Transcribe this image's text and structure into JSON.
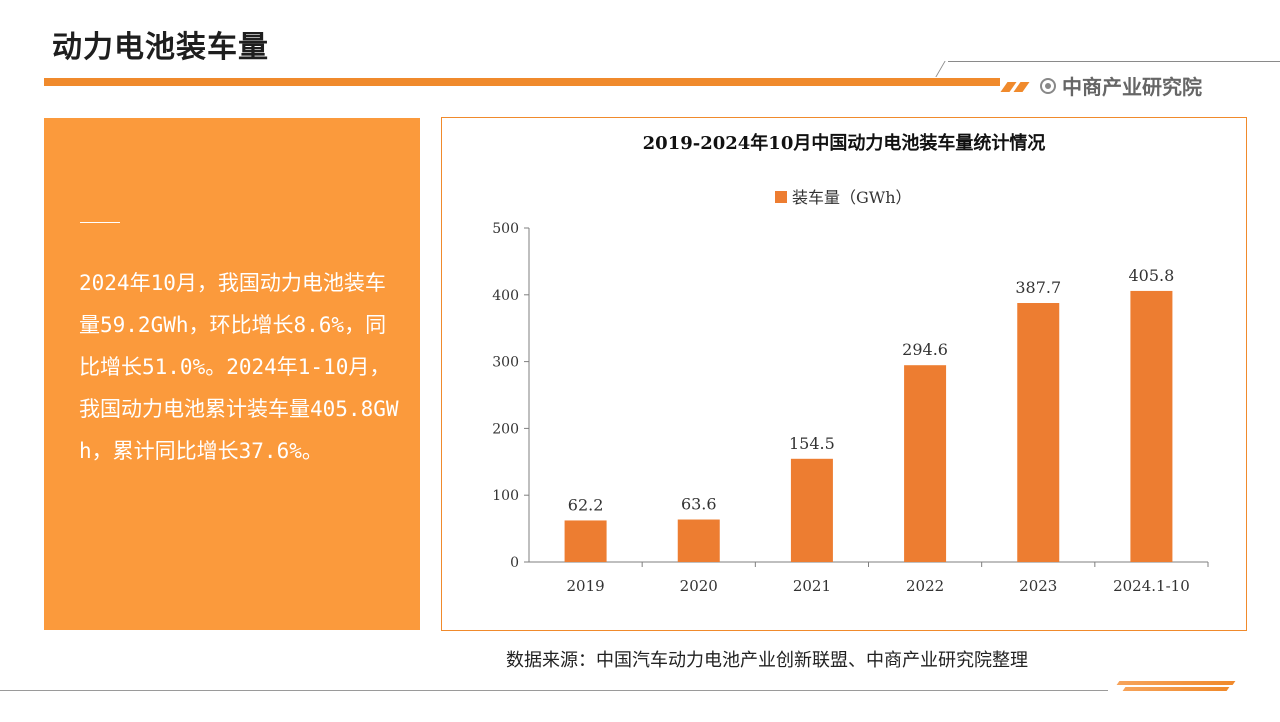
{
  "page": {
    "title": "动力电池装车量",
    "brand": "中商产业研究院"
  },
  "summary": {
    "text": "2024年10月，我国动力电池装车量59.2GWh，环比增长8.6%，同比增长51.0%。2024年1-10月，我国动力电池累计装车量405.8GWh，累计同比增长37.6%。"
  },
  "source": "数据来源：中国汽车动力电池产业创新联盟、中商产业研究院整理",
  "colors": {
    "accent": "#f08a2c",
    "panel": "#fb9a3c",
    "bar": "#ed7d31"
  },
  "chart_data": {
    "type": "bar",
    "title": "2019-2024年10月中国动力电池装车量统计情况",
    "categories": [
      "2019",
      "2020",
      "2021",
      "2022",
      "2023",
      "2024.1-10"
    ],
    "series": [
      {
        "name": "装车量（GWh）",
        "values": [
          62.2,
          63.6,
          154.5,
          294.6,
          387.7,
          405.8
        ]
      }
    ],
    "data_labels": [
      "62.2",
      "63.6",
      "154.5",
      "294.6",
      "387.7",
      "405.8"
    ],
    "ylim": [
      0,
      500
    ],
    "yticks": [
      0,
      100,
      200,
      300,
      400,
      500
    ],
    "legend": "top-center",
    "grid": false
  }
}
